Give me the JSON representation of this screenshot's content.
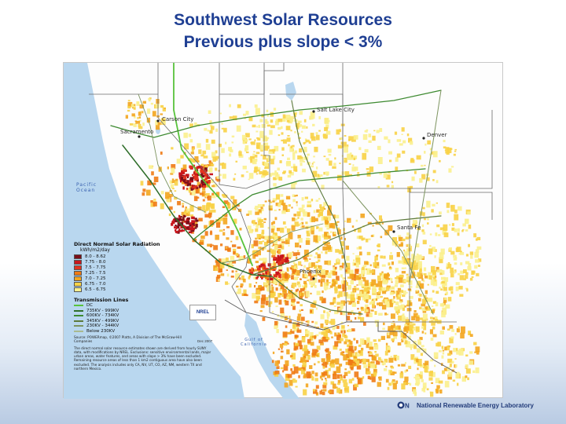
{
  "slide": {
    "title_line1": "Southwest Solar Resources",
    "title_line2": "Previous plus slope < 3%"
  },
  "map": {
    "cities": {
      "carson_city": "Carson City",
      "sacramento": "Sacramento",
      "salt_lake_city": "Salt Lake City",
      "denver": "Denver",
      "santa_fe": "Santa Fe",
      "phoenix": "Phoenix"
    },
    "ocean_label": "Pacific Ocean",
    "gulf_label": "Gulf of California",
    "legend": {
      "title": "Direct Normal Solar Radiation",
      "units": "kWh/m2/day",
      "classes": [
        {
          "label": "8.0 - 8.62",
          "color": "#7a0f1a"
        },
        {
          "label": "7.75 - 8.0",
          "color": "#c8161d"
        },
        {
          "label": "7.5 - 7.75",
          "color": "#e2331f"
        },
        {
          "label": "7.25 - 7.5",
          "color": "#ef7a14"
        },
        {
          "label": "7.0 - 7.25",
          "color": "#f3a51e"
        },
        {
          "label": "6.75 - 7.0",
          "color": "#f8d246"
        },
        {
          "label": "6.5 - 6.75",
          "color": "#fbf08d"
        }
      ],
      "transmission_title": "Transmission Lines",
      "transmission": [
        {
          "label": "DC",
          "color": "#58c23b"
        },
        {
          "label": "735KV - 999KV",
          "color": "#2f6e2a"
        },
        {
          "label": "600KV - 734KV",
          "color": "#3d8a30"
        },
        {
          "label": "345KV - 499KV",
          "color": "#5c7a3c"
        },
        {
          "label": "230KV - 344KV",
          "color": "#7d9460"
        },
        {
          "label": "Below 230KV",
          "color": "#a9b98f"
        }
      ],
      "source_note": "Source: POWERmap, ©2007 Platts, A Division of The McGraw-Hill Companies",
      "description_note": "The direct normal solar resource estimates shown are derived from hourly SUNY data, with modifications by NREL. Exclusions: sensitive environmental lands, major urban areas, water features, and areas with slope > 3% have been excluded. Remaining resource areas of less than 1 km2 contiguous area have also been excluded. The analysis includes only CA, NV, UT, CO, AZ, NM, western TX and northern Mexico.",
      "date": "Dec 2007",
      "mini_logo": "NREL"
    }
  },
  "footer": {
    "logo_text": "National Renewable Energy Laboratory"
  }
}
